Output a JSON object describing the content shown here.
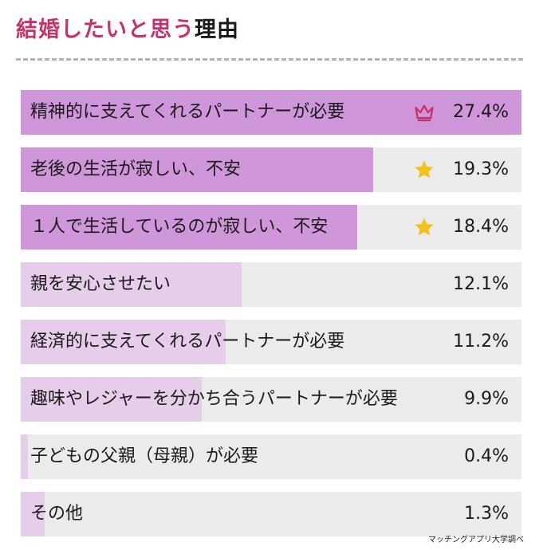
{
  "title": {
    "highlight": "結婚したいと思う",
    "rest": "理由"
  },
  "colors": {
    "strong": "#cf97d9",
    "light": "#e6cde9",
    "track": "#ebebeb",
    "title": "#c5336a",
    "crown": "#c5336a",
    "star": "#f2c21b"
  },
  "chart_data": {
    "type": "bar",
    "orientation": "horizontal",
    "title": "結婚したいと思う理由",
    "categories": [
      "精神的に支えてくれるパートナーが必要",
      "老後の生活が寂しい、不安",
      "１人で生活しているのが寂しい、不安",
      "親を安心させたい",
      "経済的に支えてくれるパートナーが必要",
      "趣味やレジャーを分かち合うパートナーが必要",
      "子どもの父親（母親）が必要",
      "その他"
    ],
    "values": [
      27.4,
      19.3,
      18.4,
      12.1,
      11.2,
      9.9,
      0.4,
      1.3
    ],
    "value_labels": [
      "27.4%",
      "19.3%",
      "18.4%",
      "12.1%",
      "11.2%",
      "9.9%",
      "0.4%",
      "1.3%"
    ],
    "xlim": [
      0,
      27.4
    ],
    "ranks": [
      "crown",
      "star",
      "star",
      "",
      "",
      "",
      "",
      ""
    ],
    "highlight_count": 3
  },
  "source": "マッチングアプリ大学調べ"
}
